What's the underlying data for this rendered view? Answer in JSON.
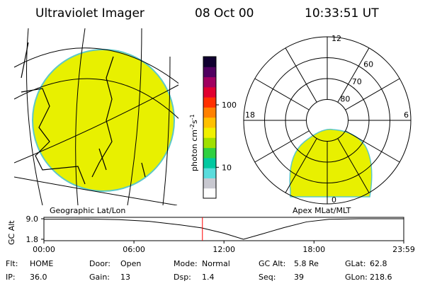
{
  "header": {
    "title": "Ultraviolet Imager",
    "date": "08 Oct 00",
    "time": "10:33:51 UT"
  },
  "colorbar": {
    "unit": [
      "photon cm",
      "-2",
      "s",
      "-1"
    ],
    "log": true,
    "lim": [
      3.2,
      590
    ],
    "ticks": [
      {
        "value": 10,
        "label": "10"
      },
      {
        "value": 100,
        "label": "100"
      }
    ],
    "colors": [
      "#ffffff",
      "#c8c8d0",
      "#5adcdc",
      "#00c8a0",
      "#30d040",
      "#a0e000",
      "#f0f000",
      "#ffc000",
      "#ff8000",
      "#ff3000",
      "#e00030",
      "#a00060",
      "#500060",
      "#100030"
    ]
  },
  "polar": {
    "lat_min": 50,
    "rings": [
      60,
      70,
      80
    ],
    "mlt_labels": {
      "top": "12",
      "left": "18",
      "right": "6",
      "bottom": "0"
    }
  },
  "map_labels": {
    "left": "Geographic Lat/Lon",
    "right": "Apex MLat/MLT"
  },
  "timeline": {
    "label": "GC Alt",
    "ylim": [
      1.8,
      9.0
    ],
    "yticks": [
      {
        "value": 9,
        "label": "9.0"
      },
      {
        "value": 1.8,
        "label": "1.8"
      }
    ],
    "xlim": [
      0,
      23.983
    ],
    "xticks": [
      {
        "value": 0,
        "label": "00:00"
      },
      {
        "value": 6,
        "label": "06:00"
      },
      {
        "value": 12,
        "label": "12:00"
      },
      {
        "value": 18,
        "label": "18:00"
      },
      {
        "value": 23.983,
        "label": "23:59"
      }
    ],
    "x": [
      0,
      3,
      5,
      7,
      9,
      10.5,
      12,
      13.3,
      14.5,
      16,
      17.5,
      19,
      21,
      23.983
    ],
    "values": [
      8.8,
      8.9,
      8.7,
      8.1,
      6.9,
      5.8,
      3.9,
      1.8,
      3.6,
      5.9,
      7.9,
      8.8,
      9.0,
      9.0
    ],
    "cursor": 10.564,
    "cursor_color": "#ff0000"
  },
  "footer": [
    [
      [
        "Flt:",
        "HOME"
      ],
      [
        "Door:",
        "Open"
      ],
      [
        "Mode:",
        "Normal"
      ],
      [
        "GC Alt:",
        "5.8 Re"
      ],
      [
        "GLat:",
        "62.8"
      ]
    ],
    [
      [
        "IP:",
        "36.0"
      ],
      [
        "Gain:",
        "13"
      ],
      [
        "Dsp:",
        "1.4"
      ],
      [
        "Seq:",
        "39"
      ],
      [
        "GLon:",
        "218.6"
      ]
    ]
  ]
}
